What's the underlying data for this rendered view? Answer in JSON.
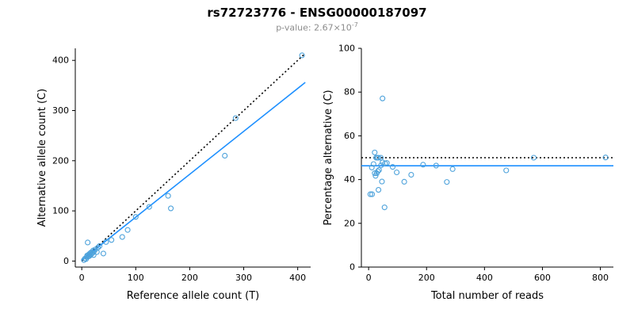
{
  "title": "rs72723776 - ENSG00000187097",
  "subtitle": {
    "prefix": "p-value: ",
    "mantissa": "2.67×10",
    "exponent": "-7"
  },
  "colors": {
    "accent_blue": "#1E90FF",
    "point_blue": "#4DA2DB",
    "identity_black": "#000000"
  },
  "chart_data": [
    {
      "type": "scatter",
      "title": "",
      "xlabel": "Reference allele count (T)",
      "ylabel": "Alternative allele count (C)",
      "xlim": [
        -12,
        424
      ],
      "ylim": [
        -12,
        424
      ],
      "xticks": [
        0,
        100,
        200,
        300,
        400
      ],
      "yticks": [
        0,
        100,
        200,
        300,
        400
      ],
      "grid": false,
      "legend": "none",
      "point_color": "#4DA2DB",
      "points": [
        [
          4,
          2
        ],
        [
          6,
          5
        ],
        [
          8,
          4
        ],
        [
          9,
          8
        ],
        [
          10,
          11
        ],
        [
          12,
          9
        ],
        [
          13,
          13
        ],
        [
          14,
          10
        ],
        [
          15,
          15
        ],
        [
          16,
          12
        ],
        [
          17,
          17
        ],
        [
          18,
          14
        ],
        [
          20,
          16
        ],
        [
          21,
          21
        ],
        [
          22,
          12
        ],
        [
          23,
          20
        ],
        [
          25,
          23
        ],
        [
          28,
          18
        ],
        [
          30,
          27
        ],
        [
          33,
          30
        ],
        [
          11,
          37
        ],
        [
          40,
          15
        ],
        [
          45,
          38
        ],
        [
          55,
          42
        ],
        [
          75,
          48
        ],
        [
          85,
          62
        ],
        [
          100,
          88
        ],
        [
          125,
          108
        ],
        [
          160,
          130
        ],
        [
          165,
          105
        ],
        [
          265,
          210
        ],
        [
          285,
          285
        ],
        [
          408,
          410
        ]
      ],
      "lines": [
        {
          "name": "identity-line",
          "style": "dotted",
          "color": "#000000",
          "x1": 0,
          "y1": 0,
          "x2": 414,
          "y2": 414
        },
        {
          "name": "regression-line",
          "style": "solid",
          "color": "#1E90FF",
          "x1": 0,
          "y1": 2,
          "x2": 414,
          "y2": 356
        }
      ]
    },
    {
      "type": "scatter",
      "title": "",
      "xlabel": "Total number of reads",
      "ylabel": "Percentage alternative (C)",
      "xlim": [
        -25,
        845
      ],
      "ylim": [
        0,
        100
      ],
      "xticks": [
        0,
        200,
        400,
        600,
        800
      ],
      "yticks": [
        0,
        20,
        40,
        60,
        80,
        100
      ],
      "grid": false,
      "legend": "none",
      "point_color": "#4DA2DB",
      "points": [
        [
          6,
          33.3
        ],
        [
          11,
          45.5
        ],
        [
          12,
          33.3
        ],
        [
          17,
          47.1
        ],
        [
          21,
          52.4
        ],
        [
          21,
          42.9
        ],
        [
          26,
          50
        ],
        [
          24,
          41.7
        ],
        [
          30,
          50
        ],
        [
          28,
          42.9
        ],
        [
          34,
          50
        ],
        [
          32,
          43.8
        ],
        [
          36,
          44.4
        ],
        [
          42,
          50
        ],
        [
          34,
          35.3
        ],
        [
          43,
          46.5
        ],
        [
          48,
          47.9
        ],
        [
          46,
          39.1
        ],
        [
          57,
          47.4
        ],
        [
          63,
          47.6
        ],
        [
          48,
          77.1
        ],
        [
          55,
          27.3
        ],
        [
          83,
          45.8
        ],
        [
          97,
          43.3
        ],
        [
          123,
          39.0
        ],
        [
          147,
          42.2
        ],
        [
          188,
          46.8
        ],
        [
          233,
          46.4
        ],
        [
          290,
          44.8
        ],
        [
          270,
          38.9
        ],
        [
          475,
          44.2
        ],
        [
          570,
          50.0
        ],
        [
          818,
          50.1
        ]
      ],
      "lines": [
        {
          "name": "fifty-percent-line",
          "style": "dotted",
          "color": "#000000",
          "x1": -25,
          "y1": 50,
          "x2": 845,
          "y2": 50
        },
        {
          "name": "mean-percentage-line",
          "style": "solid",
          "color": "#1E90FF",
          "x1": -25,
          "y1": 46.3,
          "x2": 845,
          "y2": 46.3
        }
      ]
    }
  ]
}
